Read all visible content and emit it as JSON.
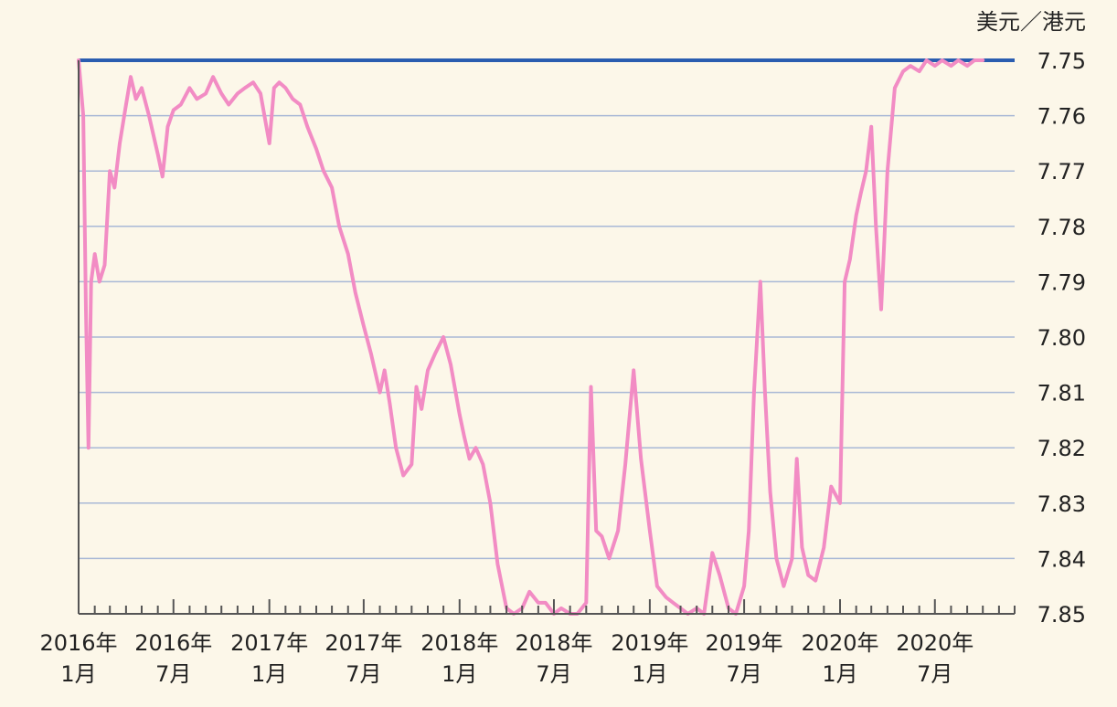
{
  "chart_data": {
    "type": "line",
    "title": "",
    "xlabel": "",
    "ylabel": "美元／港元",
    "y_axis_position": "right",
    "y_inverted": true,
    "ylim": [
      7.75,
      7.85
    ],
    "xlim": [
      "2016-01",
      "2020-12"
    ],
    "y_ticks": [
      "7.75",
      "7.76",
      "7.77",
      "7.78",
      "7.79",
      "7.80",
      "7.81",
      "7.82",
      "7.83",
      "7.84",
      "7.85"
    ],
    "x_ticks": [
      {
        "month": "2016-01",
        "line1": "2016年",
        "line2": "1月"
      },
      {
        "month": "2016-07",
        "line1": "2016年",
        "line2": "7月"
      },
      {
        "month": "2017-01",
        "line1": "2017年",
        "line2": "1月"
      },
      {
        "month": "2017-07",
        "line1": "2017年",
        "line2": "7月"
      },
      {
        "month": "2018-01",
        "line1": "2018年",
        "line2": "1月"
      },
      {
        "month": "2018-07",
        "line1": "2018年",
        "line2": "7月"
      },
      {
        "month": "2019-01",
        "line1": "2019年",
        "line2": "1月"
      },
      {
        "month": "2019-07",
        "line1": "2019年",
        "line2": "7月"
      },
      {
        "month": "2020-01",
        "line1": "2020年",
        "line2": "1月"
      },
      {
        "month": "2020-07",
        "line1": "2020年",
        "line2": "7月"
      }
    ],
    "grid": true,
    "colors": {
      "series": "#f28cc4",
      "limit_line": "#2a5db0",
      "grid": "#a9b8d6",
      "axis": "#555555"
    },
    "series": [
      {
        "values": [
          [
            "2016-01-01",
            7.75
          ],
          [
            "2016-01-10",
            7.76
          ],
          [
            "2016-01-15",
            7.795
          ],
          [
            "2016-01-20",
            7.82
          ],
          [
            "2016-01-25",
            7.79
          ],
          [
            "2016-02-01",
            7.785
          ],
          [
            "2016-02-10",
            7.79
          ],
          [
            "2016-02-20",
            7.787
          ],
          [
            "2016-03-01",
            7.77
          ],
          [
            "2016-03-10",
            7.773
          ],
          [
            "2016-03-20",
            7.765
          ],
          [
            "2016-04-01",
            7.758
          ],
          [
            "2016-04-10",
            7.753
          ],
          [
            "2016-04-20",
            7.757
          ],
          [
            "2016-05-01",
            7.755
          ],
          [
            "2016-05-15",
            7.76
          ],
          [
            "2016-06-01",
            7.767
          ],
          [
            "2016-06-10",
            7.771
          ],
          [
            "2016-06-20",
            7.762
          ],
          [
            "2016-07-01",
            7.759
          ],
          [
            "2016-07-15",
            7.758
          ],
          [
            "2016-08-01",
            7.755
          ],
          [
            "2016-08-15",
            7.757
          ],
          [
            "2016-09-01",
            7.756
          ],
          [
            "2016-09-15",
            7.753
          ],
          [
            "2016-10-01",
            7.756
          ],
          [
            "2016-10-15",
            7.758
          ],
          [
            "2016-11-01",
            7.756
          ],
          [
            "2016-11-15",
            7.755
          ],
          [
            "2016-12-01",
            7.754
          ],
          [
            "2016-12-15",
            7.756
          ],
          [
            "2017-01-01",
            7.765
          ],
          [
            "2017-01-10",
            7.755
          ],
          [
            "2017-01-20",
            7.754
          ],
          [
            "2017-02-01",
            7.755
          ],
          [
            "2017-02-15",
            7.757
          ],
          [
            "2017-03-01",
            7.758
          ],
          [
            "2017-03-15",
            7.762
          ],
          [
            "2017-04-01",
            7.766
          ],
          [
            "2017-04-15",
            7.77
          ],
          [
            "2017-05-01",
            7.773
          ],
          [
            "2017-05-15",
            7.78
          ],
          [
            "2017-06-01",
            7.785
          ],
          [
            "2017-06-15",
            7.792
          ],
          [
            "2017-07-01",
            7.798
          ],
          [
            "2017-07-15",
            7.803
          ],
          [
            "2017-08-01",
            7.81
          ],
          [
            "2017-08-10",
            7.806
          ],
          [
            "2017-08-20",
            7.812
          ],
          [
            "2017-09-01",
            7.82
          ],
          [
            "2017-09-15",
            7.825
          ],
          [
            "2017-10-01",
            7.823
          ],
          [
            "2017-10-10",
            7.809
          ],
          [
            "2017-10-20",
            7.813
          ],
          [
            "2017-11-01",
            7.806
          ],
          [
            "2017-11-15",
            7.803
          ],
          [
            "2017-12-01",
            7.8
          ],
          [
            "2017-12-15",
            7.805
          ],
          [
            "2018-01-01",
            7.814
          ],
          [
            "2018-01-10",
            7.818
          ],
          [
            "2018-01-20",
            7.822
          ],
          [
            "2018-02-01",
            7.82
          ],
          [
            "2018-02-15",
            7.823
          ],
          [
            "2018-03-01",
            7.83
          ],
          [
            "2018-03-15",
            7.841
          ],
          [
            "2018-04-01",
            7.849
          ],
          [
            "2018-04-15",
            7.85
          ],
          [
            "2018-05-01",
            7.849
          ],
          [
            "2018-05-15",
            7.846
          ],
          [
            "2018-06-01",
            7.848
          ],
          [
            "2018-06-15",
            7.848
          ],
          [
            "2018-07-01",
            7.85
          ],
          [
            "2018-07-15",
            7.849
          ],
          [
            "2018-08-01",
            7.85
          ],
          [
            "2018-08-15",
            7.85
          ],
          [
            "2018-09-01",
            7.848
          ],
          [
            "2018-09-10",
            7.809
          ],
          [
            "2018-09-20",
            7.835
          ],
          [
            "2018-10-01",
            7.836
          ],
          [
            "2018-10-15",
            7.84
          ],
          [
            "2018-11-01",
            7.835
          ],
          [
            "2018-11-15",
            7.823
          ],
          [
            "2018-12-01",
            7.806
          ],
          [
            "2018-12-15",
            7.822
          ],
          [
            "2019-01-01",
            7.835
          ],
          [
            "2019-01-15",
            7.845
          ],
          [
            "2019-02-01",
            7.847
          ],
          [
            "2019-02-15",
            7.848
          ],
          [
            "2019-03-01",
            7.849
          ],
          [
            "2019-03-15",
            7.85
          ],
          [
            "2019-04-01",
            7.849
          ],
          [
            "2019-04-15",
            7.85
          ],
          [
            "2019-05-01",
            7.839
          ],
          [
            "2019-05-15",
            7.843
          ],
          [
            "2019-06-01",
            7.849
          ],
          [
            "2019-06-15",
            7.85
          ],
          [
            "2019-07-01",
            7.845
          ],
          [
            "2019-07-10",
            7.835
          ],
          [
            "2019-07-20",
            7.81
          ],
          [
            "2019-08-01",
            7.79
          ],
          [
            "2019-08-10",
            7.81
          ],
          [
            "2019-08-20",
            7.828
          ],
          [
            "2019-09-01",
            7.84
          ],
          [
            "2019-09-15",
            7.845
          ],
          [
            "2019-10-01",
            7.84
          ],
          [
            "2019-10-10",
            7.822
          ],
          [
            "2019-10-20",
            7.838
          ],
          [
            "2019-11-01",
            7.843
          ],
          [
            "2019-11-15",
            7.844
          ],
          [
            "2019-12-01",
            7.838
          ],
          [
            "2019-12-15",
            7.827
          ],
          [
            "2020-01-01",
            7.83
          ],
          [
            "2020-01-10",
            7.79
          ],
          [
            "2020-01-20",
            7.786
          ],
          [
            "2020-02-01",
            7.778
          ],
          [
            "2020-02-10",
            7.774
          ],
          [
            "2020-02-20",
            7.77
          ],
          [
            "2020-03-01",
            7.762
          ],
          [
            "2020-03-10",
            7.78
          ],
          [
            "2020-03-20",
            7.795
          ],
          [
            "2020-04-01",
            7.77
          ],
          [
            "2020-04-15",
            7.755
          ],
          [
            "2020-05-01",
            7.752
          ],
          [
            "2020-05-15",
            7.751
          ],
          [
            "2020-06-01",
            7.752
          ],
          [
            "2020-06-15",
            7.75
          ],
          [
            "2020-07-01",
            7.751
          ],
          [
            "2020-07-15",
            7.75
          ],
          [
            "2020-08-01",
            7.751
          ],
          [
            "2020-08-15",
            7.75
          ],
          [
            "2020-09-01",
            7.751
          ],
          [
            "2020-09-15",
            7.75
          ],
          [
            "2020-10-01",
            7.75
          ]
        ]
      }
    ]
  }
}
